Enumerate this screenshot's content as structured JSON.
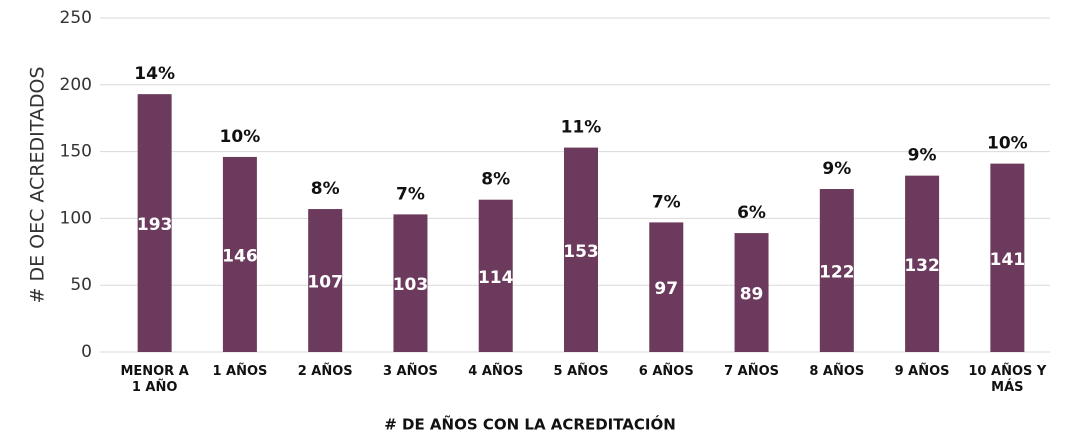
{
  "chart_data": {
    "type": "bar",
    "x_label": "# DE AÑOS CON LA ACREDITACIÓN",
    "y_label": "# DE OEC ACREDITADOS",
    "categories": [
      "MENOR A 1 AÑO",
      "1 AÑOS",
      "2 AÑOS",
      "3 AÑOS",
      "4 AÑOS",
      "5 AÑOS",
      "6 AÑOS",
      "7 AÑOS",
      "8 AÑOS",
      "9 AÑOS",
      "10 AÑOS Y MÁS"
    ],
    "values": [
      193,
      146,
      107,
      103,
      114,
      153,
      97,
      89,
      122,
      132,
      141
    ],
    "annotations": [
      "14%",
      "10%",
      "8%",
      "7%",
      "8%",
      "11%",
      "7%",
      "6%",
      "9%",
      "9%",
      "10%"
    ],
    "color": "#6b3a5c",
    "ylim": [
      0,
      250
    ],
    "yticks": [
      0,
      50,
      100,
      150,
      200,
      250
    ],
    "grid": true
  }
}
